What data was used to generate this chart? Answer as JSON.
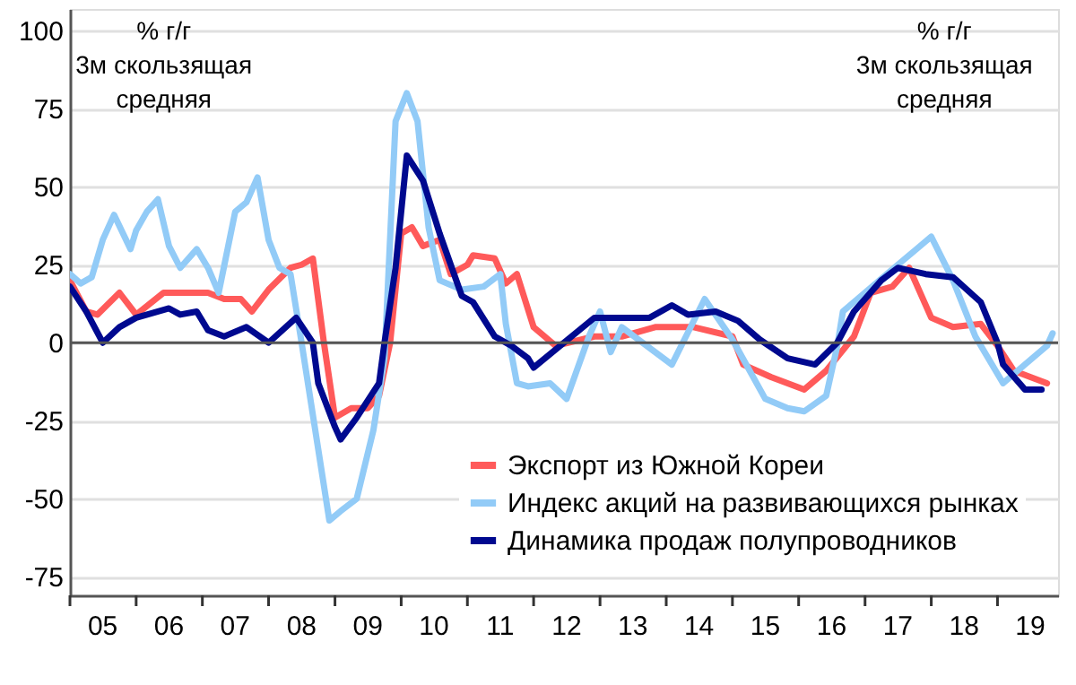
{
  "chart_data": {
    "type": "line",
    "annotations": [
      "% г/г\n3м скользящая\nсредняя",
      "% г/г\n3м скользящая\nсредняя"
    ],
    "series": [
      {
        "name": "Экспорт из Южной Кореи",
        "color": "#ff5a5a",
        "x": [
          "2005-01",
          "2005-04",
          "2005-06",
          "2005-10",
          "2006-01",
          "2006-06",
          "2006-11",
          "2007-02",
          "2007-05",
          "2007-08",
          "2007-10",
          "2008-01",
          "2008-05",
          "2008-07",
          "2008-09",
          "2008-11",
          "2009-01",
          "2009-04",
          "2009-07",
          "2009-09",
          "2009-11",
          "2010-01",
          "2010-03",
          "2010-05",
          "2010-08",
          "2010-10",
          "2011-01",
          "2011-02",
          "2011-06",
          "2011-08",
          "2011-10",
          "2012-01",
          "2012-05",
          "2012-12",
          "2013-05",
          "2013-11",
          "2014-06",
          "2015-01",
          "2015-03",
          "2015-08",
          "2016-02",
          "2016-06",
          "2016-11",
          "2017-02",
          "2017-06",
          "2017-09",
          "2018-01",
          "2018-05",
          "2018-10",
          "2019-01",
          "2019-04",
          "2019-07",
          "2019-10"
        ],
        "values": [
          20,
          10,
          9,
          16,
          9,
          16,
          16,
          16,
          14,
          14,
          10,
          17,
          24,
          25,
          27,
          0,
          -24,
          -21,
          -21,
          -17,
          0,
          35,
          37,
          31,
          33,
          22,
          25,
          28,
          27,
          19,
          22,
          5,
          -1,
          2,
          2,
          5,
          5,
          2,
          -7,
          -11,
          -15,
          -9,
          2,
          16,
          18,
          24,
          8,
          5,
          6,
          -1,
          -9,
          -11,
          -13
        ]
      },
      {
        "name": "Индекс акций на развивающихся рынках",
        "color": "#92cbf7",
        "x": [
          "2005-01",
          "2005-03",
          "2005-05",
          "2005-07",
          "2005-09",
          "2005-12",
          "2006-01",
          "2006-03",
          "2006-05",
          "2006-07",
          "2006-09",
          "2006-12",
          "2007-02",
          "2007-04",
          "2007-07",
          "2007-09",
          "2007-11",
          "2008-01",
          "2008-03",
          "2008-05",
          "2008-07",
          "2008-12",
          "2009-02",
          "2009-05",
          "2009-08",
          "2009-10",
          "2009-12",
          "2010-02",
          "2010-04",
          "2010-06",
          "2010-08",
          "2010-12",
          "2011-04",
          "2011-07",
          "2011-08",
          "2011-10",
          "2011-12",
          "2012-04",
          "2012-07",
          "2012-11",
          "2013-01",
          "2013-03",
          "2013-05",
          "2014-02",
          "2014-08",
          "2015-01",
          "2015-07",
          "2015-11",
          "2016-02",
          "2016-06",
          "2016-08",
          "2016-09",
          "2017-05",
          "2018-01",
          "2018-05",
          "2018-09",
          "2019-02",
          "2019-06",
          "2019-10",
          "2019-11"
        ],
        "values": [
          22,
          19,
          21,
          33,
          41,
          30,
          36,
          42,
          46,
          31,
          24,
          30,
          24,
          16,
          42,
          45,
          53,
          33,
          24,
          22,
          0,
          -57,
          -54,
          -50,
          -28,
          -5,
          71,
          80,
          71,
          37,
          20,
          17,
          18,
          22,
          6,
          -13,
          -14,
          -13,
          -18,
          2,
          10,
          -3,
          5,
          -7,
          14,
          1,
          -18,
          -21,
          -22,
          -17,
          -1,
          10,
          22,
          34,
          20,
          2,
          -13,
          -7,
          -1,
          3
        ]
      },
      {
        "name": "Динамика продаж полупроводников",
        "color": "#00098f",
        "x": [
          "2005-01",
          "2005-04",
          "2005-07",
          "2005-10",
          "2006-01",
          "2006-07",
          "2006-09",
          "2006-12",
          "2007-02",
          "2007-05",
          "2007-09",
          "2008-01",
          "2008-06",
          "2008-09",
          "2008-10",
          "2009-01",
          "2009-02",
          "2009-05",
          "2009-09",
          "2009-10",
          "2009-12",
          "2010-02",
          "2010-05",
          "2010-08",
          "2010-12",
          "2011-02",
          "2011-06",
          "2011-09",
          "2011-12",
          "2012-01",
          "2012-12",
          "2013-10",
          "2014-02",
          "2014-05",
          "2014-10",
          "2015-02",
          "2015-06",
          "2015-11",
          "2016-04",
          "2016-08",
          "2016-11",
          "2017-04",
          "2017-07",
          "2017-12",
          "2018-05",
          "2018-10",
          "2019-01",
          "2019-02",
          "2019-06",
          "2019-09"
        ],
        "values": [
          18,
          10,
          0,
          5,
          8,
          11,
          9,
          10,
          4,
          2,
          5,
          0,
          8,
          0,
          -13,
          -27,
          -31,
          -24,
          -13,
          0,
          24,
          60,
          52,
          35,
          15,
          13,
          2,
          -1,
          -5,
          -8,
          8,
          8,
          12,
          9,
          10,
          7,
          1,
          -5,
          -7,
          0,
          10,
          20,
          24,
          22,
          21,
          13,
          0,
          -7,
          -15,
          -15
        ]
      }
    ],
    "xlim": [
      "2005-01",
      "2019-12"
    ],
    "xticks": [
      {
        "value": "2005-01",
        "label": null
      },
      {
        "value": "2005-07",
        "label": "05"
      },
      {
        "value": "2006-01",
        "label": null
      },
      {
        "value": "2006-07",
        "label": "06"
      },
      {
        "value": "2007-01",
        "label": null
      },
      {
        "value": "2007-07",
        "label": "07"
      },
      {
        "value": "2008-01",
        "label": null
      },
      {
        "value": "2008-07",
        "label": "08"
      },
      {
        "value": "2009-01",
        "label": null
      },
      {
        "value": "2009-07",
        "label": "09"
      },
      {
        "value": "2010-01",
        "label": null
      },
      {
        "value": "2010-07",
        "label": "10"
      },
      {
        "value": "2011-01",
        "label": null
      },
      {
        "value": "2011-07",
        "label": "11"
      },
      {
        "value": "2012-01",
        "label": null
      },
      {
        "value": "2012-07",
        "label": "12"
      },
      {
        "value": "2013-01",
        "label": null
      },
      {
        "value": "2013-07",
        "label": "13"
      },
      {
        "value": "2014-01",
        "label": null
      },
      {
        "value": "2014-07",
        "label": "14"
      },
      {
        "value": "2015-01",
        "label": null
      },
      {
        "value": "2015-07",
        "label": "15"
      },
      {
        "value": "2016-01",
        "label": null
      },
      {
        "value": "2016-07",
        "label": "16"
      },
      {
        "value": "2017-01",
        "label": null
      },
      {
        "value": "2017-07",
        "label": "17"
      },
      {
        "value": "2018-01",
        "label": null
      },
      {
        "value": "2018-07",
        "label": "18"
      },
      {
        "value": "2019-01",
        "label": null
      },
      {
        "value": "2019-07",
        "label": "19"
      }
    ],
    "ylim": [
      -81,
      107
    ],
    "yticks": [
      -75,
      -50,
      -25,
      0,
      25,
      50,
      75,
      100
    ],
    "ref_lines": [
      {
        "axis": "y",
        "value": 0,
        "color": "#555555"
      }
    ],
    "grid": "y",
    "legend": "bottom",
    "line_style": "solid",
    "marker": "none"
  }
}
